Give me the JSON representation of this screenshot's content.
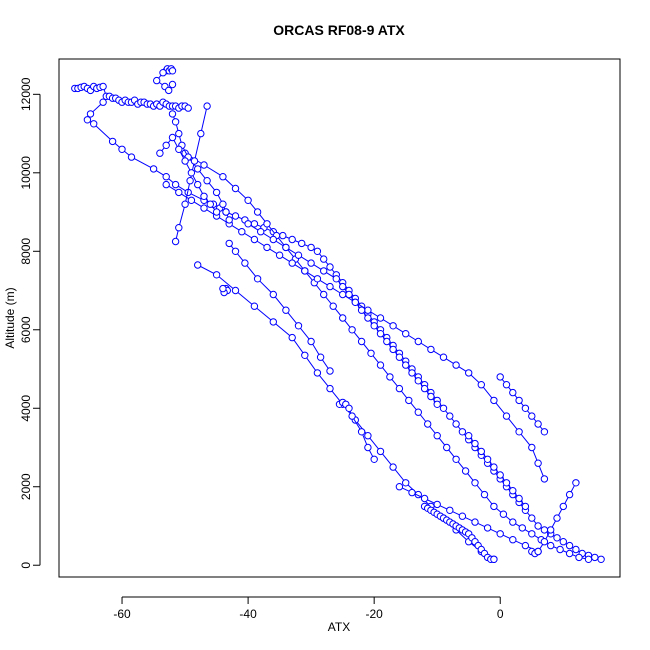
{
  "chart_data": {
    "type": "line",
    "title": "ORCAS RF08-9 ATX",
    "xlabel": "ATX",
    "ylabel": "Altitude (m)",
    "xlim": [
      -70,
      19
    ],
    "ylim": [
      -300,
      12900
    ],
    "xticks": [
      -60,
      -40,
      -20,
      0
    ],
    "yticks": [
      0,
      2000,
      4000,
      6000,
      8000,
      10000,
      12000
    ],
    "grid": false,
    "legend": "none",
    "marker": "open-circle",
    "line_style": "solid",
    "color": "#0000ff",
    "series": [
      {
        "x": [
          -67.5,
          -67,
          -66.5,
          -66,
          -65.5,
          -65,
          -64.5,
          -64,
          -63.5,
          -63,
          -62.5,
          -62,
          -61.5,
          -61,
          -60.5,
          -60,
          -59.5,
          -59,
          -58.5,
          -58,
          -57.5,
          -57,
          -56.5,
          -56,
          -55.5,
          -55,
          -54.5,
          -54,
          -53.5,
          -53,
          -52.5,
          -52,
          -51.5,
          -51,
          -50.5,
          -50,
          -49.5
        ],
        "y": [
          12150,
          12150,
          12180,
          12200,
          12150,
          12100,
          12200,
          12150,
          12180,
          12200,
          11950,
          11950,
          11900,
          11900,
          11850,
          11800,
          11850,
          11800,
          11800,
          11850,
          11750,
          11800,
          11800,
          11750,
          11750,
          11700,
          11750,
          11700,
          11800,
          11750,
          11700,
          11700,
          11700,
          11650,
          11700,
          11700,
          11650
        ]
      },
      {
        "x": [
          -53,
          -52.8,
          -52.5,
          -52.2,
          -52,
          -53.5,
          -54.5,
          -53.2,
          -52.6,
          -52
        ],
        "y": [
          12600,
          12650,
          12600,
          12650,
          12600,
          12550,
          12350,
          12200,
          12100,
          12250
        ]
      },
      {
        "x": [
          -63,
          -65,
          -65.5,
          -64.5,
          -61.5,
          -60,
          -58.5,
          -55,
          -53,
          -51.5,
          -49.5,
          -47,
          -45.5,
          -44.5,
          -43.5,
          -42,
          -40.5,
          -39,
          -37.5,
          -36,
          -34.5,
          -33,
          -31.5,
          -30,
          -29,
          -28,
          -27,
          -26,
          -25,
          -24,
          -23,
          -22,
          -21,
          -20,
          -19,
          -18,
          -17,
          -16,
          -15,
          -14,
          -13,
          -12,
          -11,
          -10,
          -9,
          -8,
          -7,
          -6,
          -5,
          -4,
          -3,
          -2,
          -1,
          0,
          1,
          2,
          3,
          4,
          5,
          6,
          7,
          8,
          9,
          10,
          11,
          12,
          13,
          14,
          15,
          16
        ],
        "y": [
          11800,
          11500,
          11350,
          11250,
          10800,
          10600,
          10400,
          10100,
          9900,
          9700,
          9500,
          9300,
          9200,
          9100,
          9000,
          8900,
          8800,
          8700,
          8600,
          8500,
          8400,
          8300,
          8200,
          8100,
          8000,
          7800,
          7600,
          7400,
          7200,
          7000,
          6800,
          6600,
          6400,
          6200,
          6000,
          5800,
          5600,
          5400,
          5200,
          5000,
          4800,
          4600,
          4400,
          4200,
          4000,
          3800,
          3600,
          3400,
          3200,
          3000,
          2800,
          2600,
          2400,
          2200,
          2000,
          1800,
          1600,
          1400,
          1200,
          1000,
          900,
          800,
          700,
          600,
          500,
          400,
          300,
          250,
          200,
          150
        ]
      },
      {
        "x": [
          -50,
          -47,
          -44,
          -42,
          -40,
          -38.5,
          -37,
          -35.5,
          -34,
          -32.5,
          -31,
          -29.5,
          -28,
          -26.5,
          -25,
          -23.5,
          -22,
          -20.5,
          -19,
          -17.5,
          -16,
          -14.5,
          -13,
          -11.5,
          -10,
          -8.5,
          -7,
          -5.5,
          -4,
          -2.5,
          -1,
          0.5,
          2,
          3.5,
          5,
          6.5,
          8,
          9.5,
          11,
          12.5,
          14
        ],
        "y": [
          10500,
          10200,
          9900,
          9600,
          9300,
          9000,
          8700,
          8400,
          8100,
          7800,
          7500,
          7200,
          6900,
          6600,
          6300,
          6000,
          5700,
          5400,
          5100,
          4800,
          4500,
          4200,
          3900,
          3600,
          3300,
          3000,
          2700,
          2400,
          2100,
          1800,
          1500,
          1300,
          1100,
          950,
          800,
          650,
          500,
          400,
          300,
          200,
          150
        ]
      },
      {
        "x": [
          -53,
          -51,
          -49,
          -47,
          -45,
          -43,
          -41,
          -39,
          -37,
          -35,
          -33,
          -31,
          -29,
          -27,
          -25,
          -23,
          -21,
          -19,
          -17,
          -15,
          -13,
          -11,
          -9,
          -7,
          -5,
          -3,
          -1,
          1,
          3,
          5,
          6,
          7
        ],
        "y": [
          9700,
          9500,
          9300,
          9100,
          8900,
          8700,
          8500,
          8300,
          8100,
          7900,
          7700,
          7500,
          7300,
          7100,
          6900,
          6700,
          6500,
          6300,
          6100,
          5900,
          5700,
          5500,
          5300,
          5100,
          4900,
          4600,
          4200,
          3800,
          3400,
          3000,
          2600,
          2200
        ]
      },
      {
        "x": [
          -52,
          -51.5,
          -51,
          -50.5,
          -49.5,
          -48,
          -46.5,
          -45,
          -44,
          -43.5,
          -43
        ],
        "y": [
          11500,
          11300,
          11000,
          10700,
          10400,
          10100,
          9800,
          9500,
          9200,
          9000,
          8800
        ]
      },
      {
        "x": [
          -51.5,
          -51,
          -50,
          -49.2,
          -48.5,
          -47.5,
          -46.5
        ],
        "y": [
          8250,
          8600,
          9200,
          9800,
          10300,
          11000,
          11700
        ]
      },
      {
        "x": [
          -54,
          -53,
          -52,
          -51,
          -50,
          -49,
          -48,
          -47,
          -46,
          -45
        ],
        "y": [
          10500,
          10700,
          10900,
          10600,
          10300,
          10000,
          9700,
          9400,
          9200,
          9000
        ]
      },
      {
        "x": [
          -43.5,
          -43.3,
          -43.8,
          -44
        ],
        "y": [
          7050,
          7000,
          6950,
          7050
        ]
      },
      {
        "x": [
          -43,
          -42,
          -40.5,
          -38.5,
          -36,
          -34,
          -32,
          -30,
          -28.5,
          -27
        ],
        "y": [
          8200,
          8000,
          7700,
          7300,
          6900,
          6500,
          6100,
          5700,
          5300,
          4950
        ]
      },
      {
        "x": [
          -40,
          -38,
          -36,
          -34,
          -32,
          -30,
          -28,
          -26,
          -25,
          -24,
          -23,
          -22,
          -21,
          -20,
          -19,
          -18,
          -17,
          -16,
          -15,
          -14,
          -13,
          -12,
          -11,
          -10
        ],
        "y": [
          8700,
          8500,
          8300,
          8100,
          7900,
          7700,
          7500,
          7300,
          7100,
          6900,
          6700,
          6500,
          6300,
          6100,
          5900,
          5700,
          5500,
          5300,
          5100,
          4900,
          4700,
          4500,
          4300,
          4100
        ]
      },
      {
        "x": [
          -48,
          -45,
          -42,
          -39,
          -36,
          -33,
          -31,
          -29,
          -27,
          -25,
          -23,
          -21,
          -19,
          -17,
          -15,
          -13,
          -11,
          -9,
          -7,
          -5,
          -3,
          -1
        ],
        "y": [
          7650,
          7400,
          7000,
          6600,
          6200,
          5800,
          5350,
          4900,
          4500,
          4100,
          3700,
          3300,
          2900,
          2500,
          2100,
          1800,
          1500,
          1200,
          900,
          600,
          350,
          150
        ]
      },
      {
        "x": [
          -25.5,
          -25,
          -24.5,
          -24,
          -23.5,
          -22,
          -21,
          -20
        ],
        "y": [
          4100,
          4150,
          4100,
          4000,
          3800,
          3400,
          3000,
          2700
        ]
      },
      {
        "x": [
          -12,
          -11.5,
          -11,
          -10.5,
          -10,
          -9.5,
          -9,
          -8.5,
          -8,
          -7.5,
          -7,
          -6.5,
          -6,
          -5.5,
          -5,
          -4.5,
          -4,
          -3.5,
          -3,
          -2.5,
          -2,
          -1.5,
          -1
        ],
        "y": [
          1500,
          1450,
          1400,
          1350,
          1300,
          1250,
          1200,
          1150,
          1100,
          1050,
          1000,
          950,
          900,
          850,
          800,
          700,
          600,
          500,
          400,
          300,
          200,
          150,
          150
        ]
      },
      {
        "x": [
          -16,
          -14,
          -12,
          -10,
          -8,
          -6,
          -4,
          -2,
          0,
          2,
          4,
          6
        ],
        "y": [
          2000,
          1850,
          1700,
          1550,
          1400,
          1250,
          1100,
          950,
          800,
          650,
          500,
          350
        ]
      },
      {
        "x": [
          5,
          5.5,
          6,
          7,
          8,
          9,
          10,
          11,
          12
        ],
        "y": [
          350,
          300,
          350,
          600,
          900,
          1200,
          1500,
          1800,
          2100
        ]
      },
      {
        "x": [
          0,
          1,
          2,
          3,
          4,
          5,
          6,
          7
        ],
        "y": [
          4800,
          4600,
          4400,
          4200,
          4000,
          3800,
          3600,
          3400
        ]
      },
      {
        "x": [
          -5,
          -4,
          -3,
          -2,
          -1,
          0,
          1,
          2,
          3,
          4
        ],
        "y": [
          3300,
          3100,
          2900,
          2700,
          2500,
          2300,
          2100,
          1900,
          1700,
          1500
        ]
      }
    ]
  }
}
